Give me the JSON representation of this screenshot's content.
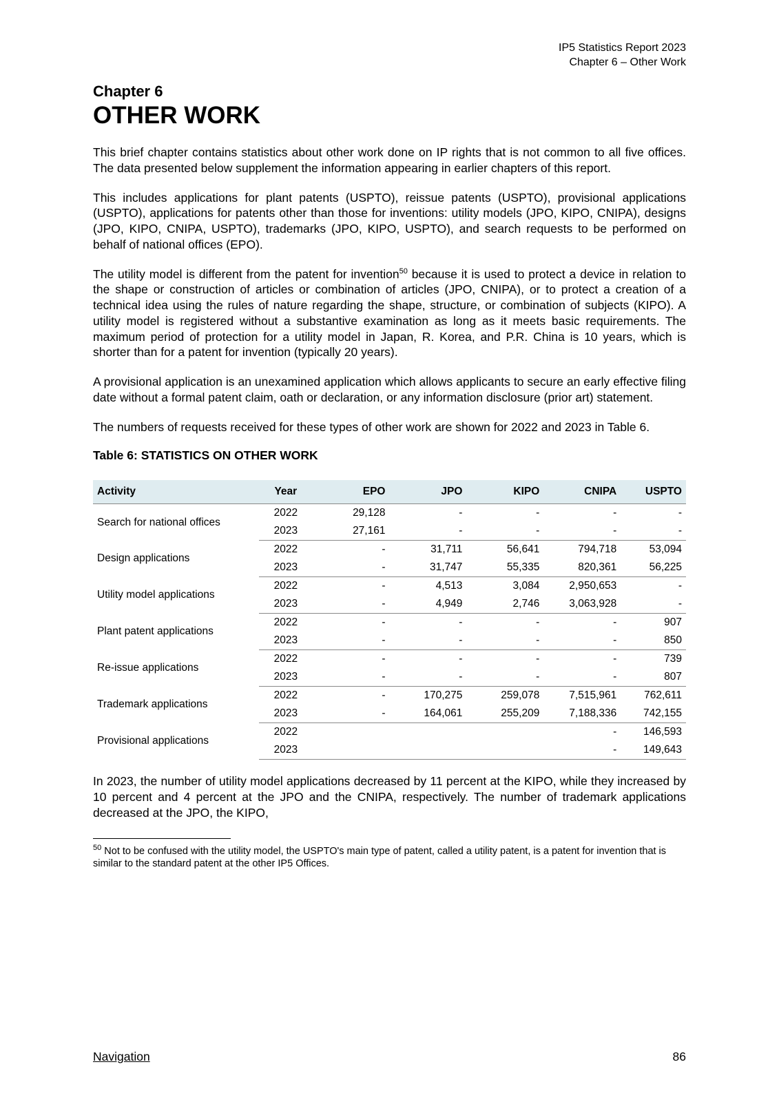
{
  "header": {
    "line1": "IP5 Statistics Report 2023",
    "line2": "Chapter 6 – Other Work"
  },
  "chapter": {
    "label": "Chapter 6",
    "title": "OTHER WORK"
  },
  "paragraphs": {
    "p1": "This brief chapter contains statistics about other work done on IP rights that is not common to all five offices. The data presented below supplement the information appearing in earlier chapters of this report.",
    "p2": "This includes applications for plant patents (USPTO), reissue patents (USPTO), provisional applications (USPTO), applications for patents other than those for inventions: utility models (JPO, KIPO, CNIPA), designs (JPO, KIPO, CNIPA, USPTO), trademarks (JPO, KIPO, USPTO), and search requests to be performed on behalf of national offices (EPO).",
    "p3a": "The utility model is different from the patent for invention",
    "p3sup": "50",
    "p3b": " because it is used to protect a device in relation to the shape or construction of articles or combination of articles (JPO, CNIPA), or to protect a creation of a technical idea using the rules of nature regarding the shape, structure, or combination of subjects (KIPO). A utility model is registered without a substantive examination as long as it meets basic requirements. The maximum period of protection for a utility model in Japan, R. Korea, and P.R. China is 10 years, which is shorter than for a patent for invention (typically 20 years).",
    "p4": "A provisional application is an unexamined application which allows applicants to secure an early effective filing date without a formal patent claim, oath or declaration, or any information disclosure (prior art) statement.",
    "p5": "The numbers of requests received for these types of other work are shown for 2022 and 2023 in Table 6.",
    "p6": "In 2023, the number of utility model applications decreased by 11 percent at the KIPO, while they increased by 10 percent and 4 percent at the JPO and the CNIPA, respectively. The number of trademark applications decreased at the JPO, the KIPO,"
  },
  "table": {
    "title": "Table 6: STATISTICS ON OTHER WORK",
    "columns": [
      "Activity",
      "Year",
      "EPO",
      "JPO",
      "KIPO",
      "CNIPA",
      "USPTO"
    ],
    "col_widths": [
      "28%",
      "9%",
      "13%",
      "13%",
      "13%",
      "13%",
      "11%"
    ],
    "col_align": [
      "left",
      "center",
      "right",
      "right",
      "right",
      "right",
      "right"
    ],
    "header_bg": "#dfecf0",
    "border_color": "#888888",
    "groups": [
      {
        "activity": "Search for national offices",
        "rows": [
          {
            "year": "2022",
            "epo": "29,128",
            "jpo": "-",
            "kipo": "-",
            "cnipa": "-",
            "uspto": "-"
          },
          {
            "year": "2023",
            "epo": "27,161",
            "jpo": "-",
            "kipo": "-",
            "cnipa": "-",
            "uspto": "-"
          }
        ]
      },
      {
        "activity": "Design applications",
        "rows": [
          {
            "year": "2022",
            "epo": "-",
            "jpo": "31,711",
            "kipo": "56,641",
            "cnipa": "794,718",
            "uspto": "53,094"
          },
          {
            "year": "2023",
            "epo": "-",
            "jpo": "31,747",
            "kipo": "55,335",
            "cnipa": "820,361",
            "uspto": "56,225"
          }
        ]
      },
      {
        "activity": "Utility model applications",
        "rows": [
          {
            "year": "2022",
            "epo": "-",
            "jpo": "4,513",
            "kipo": "3,084",
            "cnipa": "2,950,653",
            "uspto": "-"
          },
          {
            "year": "2023",
            "epo": "-",
            "jpo": "4,949",
            "kipo": "2,746",
            "cnipa": "3,063,928",
            "uspto": "-"
          }
        ]
      },
      {
        "activity": "Plant patent applications",
        "rows": [
          {
            "year": "2022",
            "epo": "-",
            "jpo": "-",
            "kipo": "-",
            "cnipa": "-",
            "uspto": "907"
          },
          {
            "year": "2023",
            "epo": "-",
            "jpo": "-",
            "kipo": "-",
            "cnipa": "-",
            "uspto": "850"
          }
        ]
      },
      {
        "activity": "Re-issue applications",
        "rows": [
          {
            "year": "2022",
            "epo": "-",
            "jpo": "-",
            "kipo": "-",
            "cnipa": "-",
            "uspto": "739"
          },
          {
            "year": "2023",
            "epo": "-",
            "jpo": "-",
            "kipo": "-",
            "cnipa": "-",
            "uspto": "807"
          }
        ]
      },
      {
        "activity": "Trademark applications",
        "rows": [
          {
            "year": "2022",
            "epo": "-",
            "jpo": "170,275",
            "kipo": "259,078",
            "cnipa": "7,515,961",
            "uspto": "762,611"
          },
          {
            "year": "2023",
            "epo": "-",
            "jpo": "164,061",
            "kipo": "255,209",
            "cnipa": "7,188,336",
            "uspto": "742,155"
          }
        ]
      },
      {
        "activity": "Provisional applications",
        "rows": [
          {
            "year": "2022",
            "epo": "",
            "jpo": "",
            "kipo": "",
            "cnipa": "-",
            "uspto": "146,593"
          },
          {
            "year": "2023",
            "epo": "",
            "jpo": "",
            "kipo": "",
            "cnipa": "-",
            "uspto": "149,643"
          }
        ]
      }
    ]
  },
  "footnote": {
    "num": "50",
    "text": " Not to be confused with the utility model, the USPTO's main type of patent, called a utility patent, is a patent for invention that is similar to the standard patent at the other IP5 Offices."
  },
  "footer": {
    "nav": "Navigation",
    "page": "86"
  },
  "style": {
    "page_bg": "#ffffff",
    "text_color": "#000000",
    "body_fontsize": 17.5,
    "table_fontsize": 15.5
  }
}
